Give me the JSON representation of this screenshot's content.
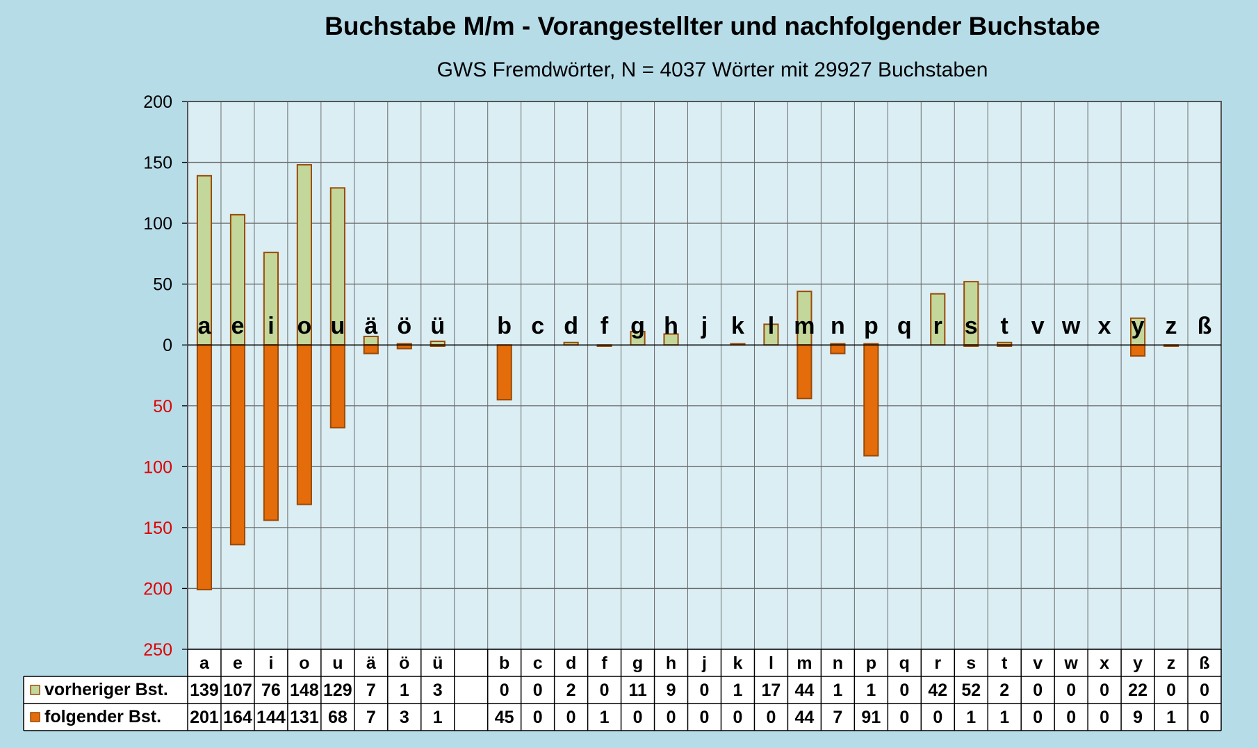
{
  "chart_data": {
    "type": "bar",
    "title": "Buchstabe M/m - Vorangestellter und nachfolgender Buchstabe",
    "subtitle": "GWS Fremdwörter,  N = 4037 Wörter mit 29927 Buchstaben",
    "categories": [
      "a",
      "e",
      "i",
      "o",
      "u",
      "ä",
      "ö",
      "ü",
      "",
      "b",
      "c",
      "d",
      "f",
      "g",
      "h",
      "j",
      "k",
      "l",
      "m",
      "n",
      "p",
      "q",
      "r",
      "s",
      "t",
      "v",
      "w",
      "x",
      "y",
      "z",
      "ß"
    ],
    "series": [
      {
        "name": "vorheriger Bst.",
        "values": [
          139,
          107,
          76,
          148,
          129,
          7,
          1,
          3,
          null,
          0,
          0,
          2,
          0,
          11,
          9,
          0,
          1,
          17,
          44,
          1,
          1,
          0,
          42,
          52,
          2,
          0,
          0,
          0,
          22,
          0,
          0
        ]
      },
      {
        "name": "folgender Bst.",
        "values": [
          201,
          164,
          144,
          131,
          68,
          7,
          3,
          1,
          null,
          45,
          0,
          0,
          1,
          0,
          0,
          0,
          0,
          0,
          44,
          7,
          91,
          0,
          0,
          1,
          1,
          0,
          0,
          0,
          9,
          1,
          0
        ]
      }
    ],
    "y_ticks_positive": [
      "200",
      "150",
      "100",
      "50",
      "0"
    ],
    "y_ticks_negative": [
      "50",
      "100",
      "150",
      "200",
      "250"
    ],
    "ylim": [
      -250,
      200
    ],
    "grid": true,
    "legend": "data-table-bottom",
    "colors": {
      "background": "#b6dce8",
      "plot_background": "#dbeef4",
      "vorheriger_fill": "#c4d79b",
      "folgender_fill": "#e46c0a",
      "bar_border": "#9a4a06",
      "negative_tick": "#e00000",
      "grid": "#6a6a6a"
    }
  }
}
